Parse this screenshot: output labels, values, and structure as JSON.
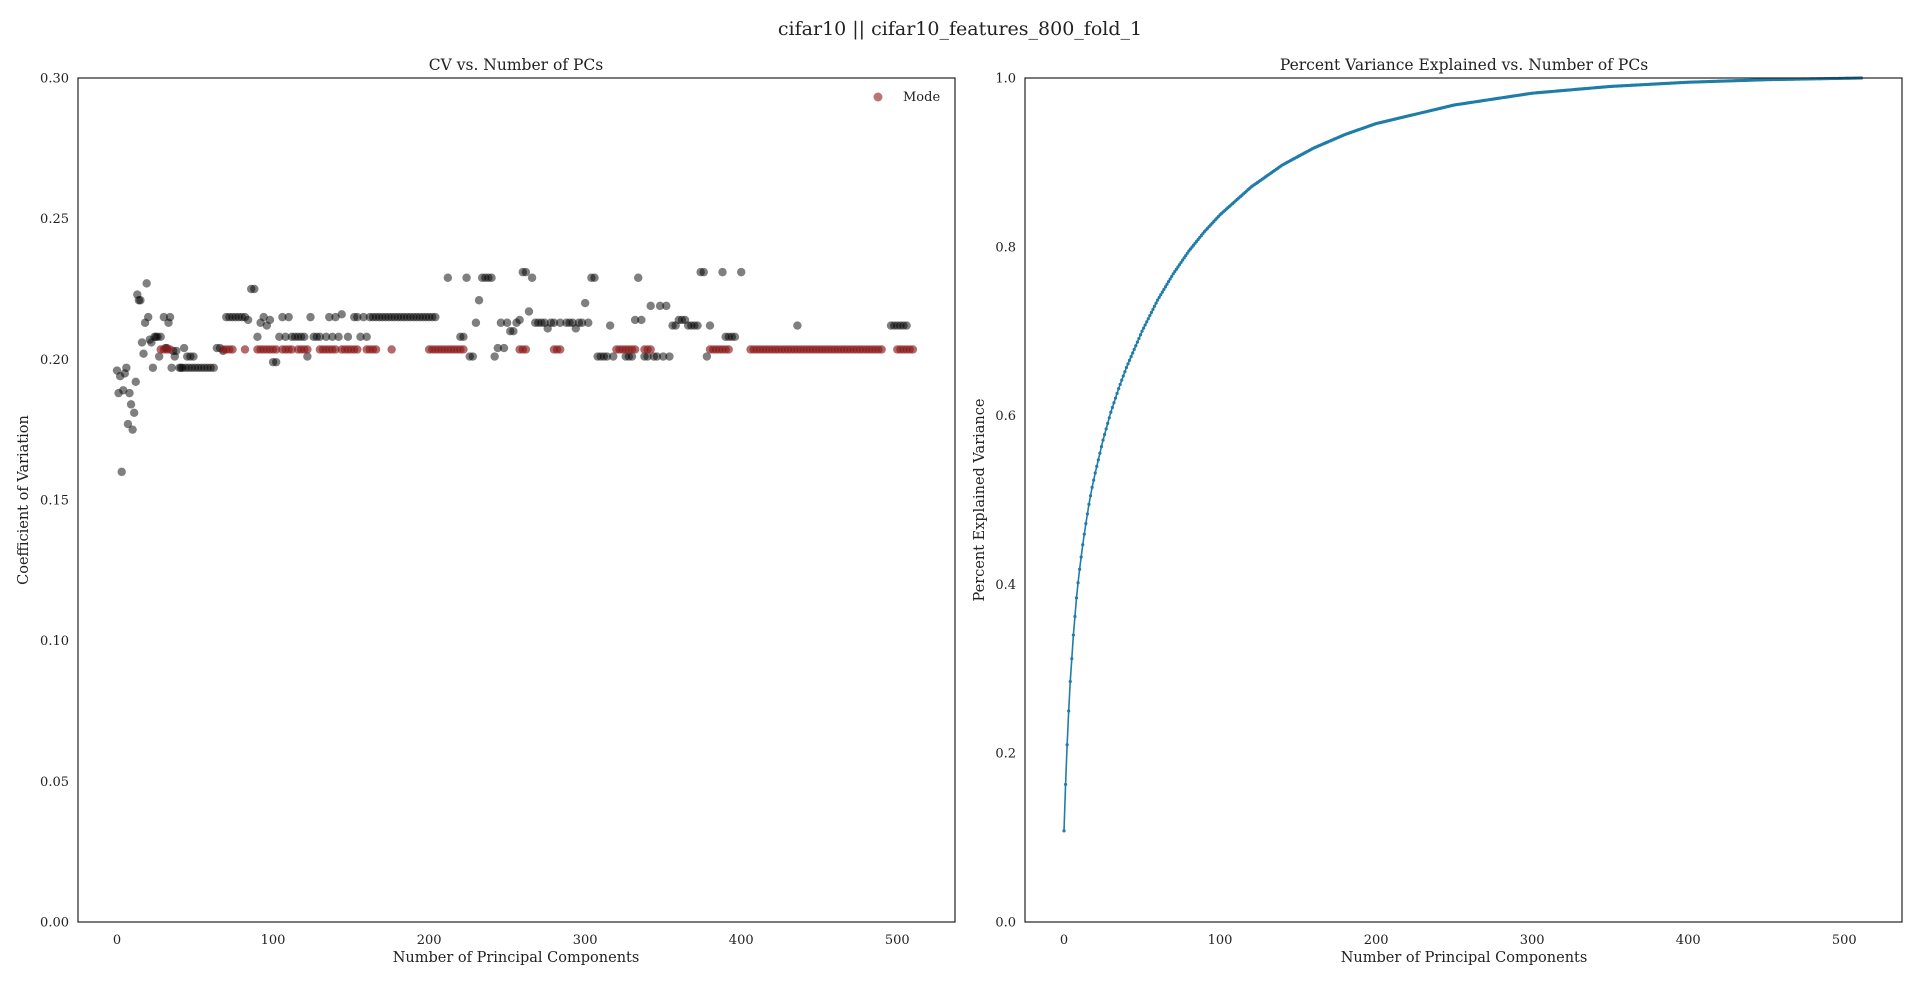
{
  "suptitle": "cifar10 || cifar10_features_800_fold_1",
  "chart_data": [
    {
      "type": "scatter",
      "title": "CV vs. Number of PCs",
      "xlabel": "Number of Principal Components",
      "ylabel": "Coefficient of Variation",
      "xlim": [
        -25,
        537
      ],
      "ylim": [
        0.0,
        0.3
      ],
      "xticks": [
        "0",
        "100",
        "200",
        "300",
        "400",
        "500"
      ],
      "yticks": [
        "0.00",
        "0.05",
        "0.10",
        "0.15",
        "0.20",
        "0.25",
        "0.30"
      ],
      "grid": false,
      "legend_position": "top-right",
      "colors": {
        "points": "#000000",
        "mode": "#8b1a1a"
      },
      "series": [
        {
          "name": "",
          "color": "#000000",
          "opacity": 0.5,
          "points": [
            [
              0,
              0.196
            ],
            [
              1,
              0.188
            ],
            [
              2,
              0.194
            ],
            [
              3,
              0.16
            ],
            [
              4,
              0.189
            ],
            [
              5,
              0.195
            ],
            [
              6,
              0.197
            ],
            [
              7,
              0.177
            ],
            [
              8,
              0.188
            ],
            [
              9,
              0.184
            ],
            [
              10,
              0.175
            ],
            [
              11,
              0.181
            ],
            [
              12,
              0.192
            ],
            [
              13,
              0.223
            ],
            [
              14,
              0.221
            ],
            [
              15,
              0.221
            ],
            [
              16,
              0.206
            ],
            [
              17,
              0.202
            ],
            [
              18,
              0.213
            ],
            [
              19,
              0.227
            ],
            [
              20,
              0.215
            ],
            [
              21,
              0.207
            ],
            [
              22,
              0.206
            ],
            [
              23,
              0.197
            ],
            [
              24,
              0.208
            ],
            [
              25,
              0.208
            ],
            [
              26,
              0.208
            ],
            [
              27,
              0.201
            ],
            [
              28,
              0.208
            ],
            [
              30,
              0.215
            ],
            [
              31,
              0.204
            ],
            [
              32,
              0.204
            ],
            [
              33,
              0.213
            ],
            [
              34,
              0.215
            ],
            [
              35,
              0.197
            ],
            [
              36,
              0.203
            ],
            [
              37,
              0.201
            ],
            [
              38,
              0.203
            ],
            [
              40,
              0.197
            ],
            [
              41,
              0.197
            ],
            [
              42,
              0.197
            ],
            [
              43,
              0.204
            ],
            [
              44,
              0.197
            ],
            [
              45,
              0.201
            ],
            [
              46,
              0.197
            ],
            [
              47,
              0.201
            ],
            [
              48,
              0.197
            ],
            [
              49,
              0.201
            ],
            [
              50,
              0.197
            ],
            [
              52,
              0.197
            ],
            [
              54,
              0.197
            ],
            [
              56,
              0.197
            ],
            [
              58,
              0.197
            ],
            [
              60,
              0.197
            ],
            [
              62,
              0.197
            ],
            [
              64,
              0.204
            ],
            [
              66,
              0.204
            ],
            [
              68,
              0.203
            ],
            [
              70,
              0.215
            ],
            [
              72,
              0.215
            ],
            [
              74,
              0.215
            ],
            [
              76,
              0.215
            ],
            [
              78,
              0.215
            ],
            [
              80,
              0.215
            ],
            [
              82,
              0.215
            ],
            [
              84,
              0.214
            ],
            [
              86,
              0.225
            ],
            [
              88,
              0.225
            ],
            [
              90,
              0.208
            ],
            [
              92,
              0.213
            ],
            [
              94,
              0.215
            ],
            [
              96,
              0.212
            ],
            [
              98,
              0.214
            ],
            [
              100,
              0.199
            ],
            [
              102,
              0.199
            ],
            [
              104,
              0.208
            ],
            [
              106,
              0.215
            ],
            [
              108,
              0.208
            ],
            [
              110,
              0.215
            ],
            [
              112,
              0.208
            ],
            [
              114,
              0.208
            ],
            [
              116,
              0.208
            ],
            [
              118,
              0.208
            ],
            [
              120,
              0.208
            ],
            [
              122,
              0.201
            ],
            [
              124,
              0.215
            ],
            [
              126,
              0.208
            ],
            [
              128,
              0.208
            ],
            [
              130,
              0.208
            ],
            [
              134,
              0.208
            ],
            [
              136,
              0.215
            ],
            [
              138,
              0.208
            ],
            [
              140,
              0.215
            ],
            [
              142,
              0.208
            ],
            [
              144,
              0.216
            ],
            [
              148,
              0.208
            ],
            [
              152,
              0.215
            ],
            [
              154,
              0.215
            ],
            [
              156,
              0.208
            ],
            [
              158,
              0.215
            ],
            [
              160,
              0.208
            ],
            [
              162,
              0.215
            ],
            [
              164,
              0.215
            ],
            [
              166,
              0.215
            ],
            [
              168,
              0.215
            ],
            [
              170,
              0.215
            ],
            [
              172,
              0.215
            ],
            [
              174,
              0.215
            ],
            [
              176,
              0.215
            ],
            [
              178,
              0.215
            ],
            [
              180,
              0.215
            ],
            [
              182,
              0.215
            ],
            [
              184,
              0.215
            ],
            [
              186,
              0.215
            ],
            [
              188,
              0.215
            ],
            [
              190,
              0.215
            ],
            [
              192,
              0.215
            ],
            [
              194,
              0.215
            ],
            [
              196,
              0.215
            ],
            [
              198,
              0.215
            ],
            [
              200,
              0.215
            ],
            [
              202,
              0.215
            ],
            [
              204,
              0.215
            ],
            [
              212,
              0.229
            ],
            [
              220,
              0.208
            ],
            [
              222,
              0.208
            ],
            [
              224,
              0.229
            ],
            [
              226,
              0.201
            ],
            [
              228,
              0.201
            ],
            [
              230,
              0.213
            ],
            [
              232,
              0.221
            ],
            [
              234,
              0.229
            ],
            [
              236,
              0.229
            ],
            [
              238,
              0.229
            ],
            [
              240,
              0.229
            ],
            [
              242,
              0.201
            ],
            [
              244,
              0.204
            ],
            [
              246,
              0.213
            ],
            [
              248,
              0.204
            ],
            [
              250,
              0.213
            ],
            [
              252,
              0.21
            ],
            [
              254,
              0.21
            ],
            [
              256,
              0.213
            ],
            [
              258,
              0.214
            ],
            [
              260,
              0.231
            ],
            [
              262,
              0.231
            ],
            [
              264,
              0.217
            ],
            [
              266,
              0.229
            ],
            [
              268,
              0.213
            ],
            [
              270,
              0.213
            ],
            [
              272,
              0.213
            ],
            [
              274,
              0.213
            ],
            [
              276,
              0.211
            ],
            [
              278,
              0.213
            ],
            [
              280,
              0.213
            ],
            [
              284,
              0.213
            ],
            [
              288,
              0.213
            ],
            [
              290,
              0.213
            ],
            [
              292,
              0.213
            ],
            [
              294,
              0.211
            ],
            [
              296,
              0.213
            ],
            [
              298,
              0.213
            ],
            [
              300,
              0.22
            ],
            [
              302,
              0.213
            ],
            [
              304,
              0.229
            ],
            [
              306,
              0.229
            ],
            [
              308,
              0.201
            ],
            [
              310,
              0.201
            ],
            [
              312,
              0.201
            ],
            [
              314,
              0.201
            ],
            [
              316,
              0.212
            ],
            [
              318,
              0.201
            ],
            [
              326,
              0.201
            ],
            [
              328,
              0.201
            ],
            [
              330,
              0.201
            ],
            [
              332,
              0.214
            ],
            [
              334,
              0.229
            ],
            [
              336,
              0.214
            ],
            [
              338,
              0.201
            ],
            [
              340,
              0.201
            ],
            [
              342,
              0.219
            ],
            [
              344,
              0.201
            ],
            [
              346,
              0.201
            ],
            [
              348,
              0.219
            ],
            [
              350,
              0.201
            ],
            [
              352,
              0.219
            ],
            [
              354,
              0.201
            ],
            [
              356,
              0.212
            ],
            [
              358,
              0.212
            ],
            [
              360,
              0.214
            ],
            [
              362,
              0.214
            ],
            [
              364,
              0.214
            ],
            [
              366,
              0.212
            ],
            [
              368,
              0.212
            ],
            [
              370,
              0.212
            ],
            [
              372,
              0.212
            ],
            [
              374,
              0.231
            ],
            [
              376,
              0.231
            ],
            [
              378,
              0.201
            ],
            [
              380,
              0.212
            ],
            [
              388,
              0.231
            ],
            [
              390,
              0.208
            ],
            [
              392,
              0.208
            ],
            [
              394,
              0.208
            ],
            [
              396,
              0.208
            ],
            [
              400,
              0.231
            ],
            [
              436,
              0.212
            ],
            [
              496,
              0.212
            ],
            [
              498,
              0.212
            ],
            [
              500,
              0.212
            ],
            [
              502,
              0.212
            ],
            [
              504,
              0.212
            ],
            [
              506,
              0.212
            ]
          ]
        },
        {
          "name": "Mode",
          "color": "#8b1a1a",
          "opacity": 0.65,
          "y": 0.2035,
          "x_ranges": [
            [
              28,
              34
            ],
            [
              68,
              74
            ],
            [
              82,
              82
            ],
            [
              90,
              102
            ],
            [
              106,
              112
            ],
            [
              116,
              122
            ],
            [
              130,
              140
            ],
            [
              144,
              154
            ],
            [
              160,
              166
            ],
            [
              176,
              176
            ],
            [
              200,
              222
            ],
            [
              258,
              262
            ],
            [
              280,
              284
            ],
            [
              320,
              332
            ],
            [
              338,
              342
            ],
            [
              380,
              392
            ],
            [
              406,
              490
            ],
            [
              500,
              510
            ]
          ],
          "x_step": 2
        }
      ]
    },
    {
      "type": "line",
      "title": "Percent Variance Explained vs. Number of PCs",
      "xlabel": "Number of Principal Components",
      "ylabel": "Percent Explained Variance",
      "xlim": [
        -25,
        537
      ],
      "ylim": [
        0.0,
        1.0
      ],
      "xticks": [
        "0",
        "100",
        "200",
        "300",
        "400",
        "500"
      ],
      "yticks": [
        "0.0",
        "0.2",
        "0.4",
        "0.6",
        "0.8",
        "1.0"
      ],
      "grid": false,
      "colors": {
        "line": "#1f7da8"
      },
      "series": [
        {
          "name": "",
          "color": "#1f7da8",
          "x": [
            0,
            1,
            2,
            3,
            4,
            5,
            6,
            7,
            8,
            9,
            10,
            12,
            14,
            16,
            18,
            20,
            25,
            30,
            35,
            40,
            50,
            60,
            70,
            80,
            90,
            100,
            120,
            140,
            160,
            180,
            200,
            250,
            300,
            350,
            400,
            450,
            511
          ],
          "y": [
            0.108,
            0.163,
            0.21,
            0.25,
            0.285,
            0.312,
            0.34,
            0.362,
            0.384,
            0.402,
            0.418,
            0.447,
            0.472,
            0.495,
            0.515,
            0.532,
            0.571,
            0.604,
            0.632,
            0.657,
            0.7,
            0.737,
            0.768,
            0.795,
            0.818,
            0.838,
            0.871,
            0.897,
            0.917,
            0.933,
            0.946,
            0.968,
            0.982,
            0.99,
            0.995,
            0.998,
            1.0
          ]
        }
      ]
    }
  ]
}
